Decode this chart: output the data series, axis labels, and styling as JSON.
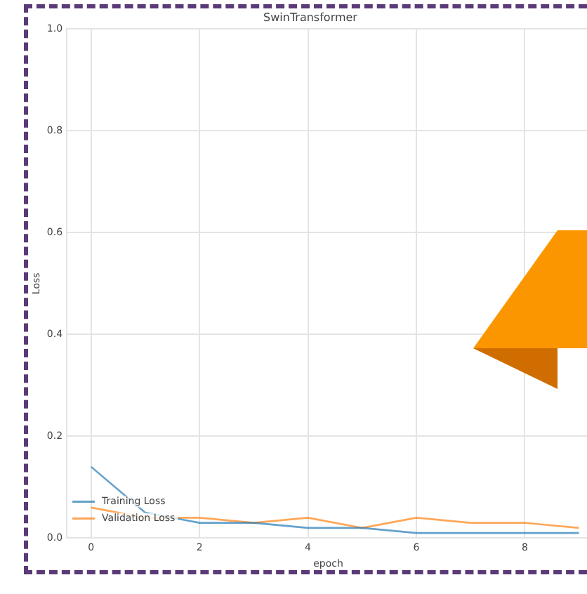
{
  "chart_data": {
    "type": "line",
    "title": "SwinTransformer",
    "xlabel": "epoch",
    "ylabel": "Loss",
    "x": [
      0,
      1,
      2,
      3,
      4,
      5,
      6,
      7,
      8,
      9
    ],
    "series": [
      {
        "name": "Training Loss",
        "color": "#1f77b4",
        "values": [
          0.14,
          0.05,
          0.03,
          0.03,
          0.02,
          0.02,
          0.01,
          0.01,
          0.01,
          0.01
        ]
      },
      {
        "name": "Validation Loss",
        "color": "#ff7f0e",
        "values": [
          0.06,
          0.04,
          0.04,
          0.03,
          0.04,
          0.02,
          0.04,
          0.03,
          0.03,
          0.02
        ]
      }
    ],
    "xlim": [
      -0.45,
      9.2
    ],
    "xticks": [
      0,
      2,
      4,
      6,
      8
    ],
    "ylim": [
      0,
      1
    ],
    "yticks": [
      {
        "value": 0,
        "label": "0.0"
      },
      0.2,
      0.4,
      0.6,
      0.8,
      {
        "value": 1,
        "label": "1.0"
      }
    ],
    "grid": true,
    "legend": "bottom left"
  }
}
